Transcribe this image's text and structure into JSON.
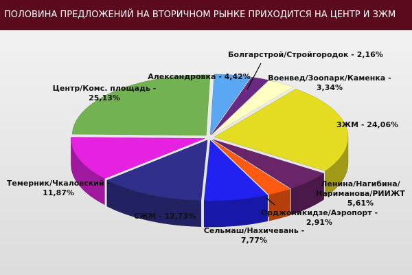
{
  "chart_data": {
    "type": "pie3d",
    "title": "ПОЛОВИНА ПРЕДЛОЖЕНИЙ НА ВТОРИЧНОМ РЫНКЕ ПРИХОДИТСЯ НА ЦЕНТР И ЗЖМ",
    "labels": [
      "Александровка - 4,42%",
      "Болгарстрой/Стройгородок - 2,16%",
      "Военвед/Зоопарк/Каменка -\n3,34%",
      "ЗЖМ - 24,06%",
      "Ленина/Нагибина/\nНариманова/РИИЖТ\n5,61%",
      "Орджоникидзе/Аэропорт -\n2,91%",
      "Сельмаш/Нахичевань -\n7,77%",
      "СЖМ - 12,73%",
      "Темерник/Чкаловский -\n11,87%",
      "Центр/Комс. площадь -\n25,13%"
    ],
    "values": [
      4.42,
      2.16,
      3.34,
      24.06,
      5.61,
      2.91,
      7.77,
      12.73,
      11.87,
      25.13
    ],
    "colors": [
      "#5aa8f4",
      "#6a2a84",
      "#ffffc4",
      "#e4dc22",
      "#6a2468",
      "#ff5a12",
      "#2222f0",
      "#30308c",
      "#e422e0",
      "#72b252"
    ]
  }
}
